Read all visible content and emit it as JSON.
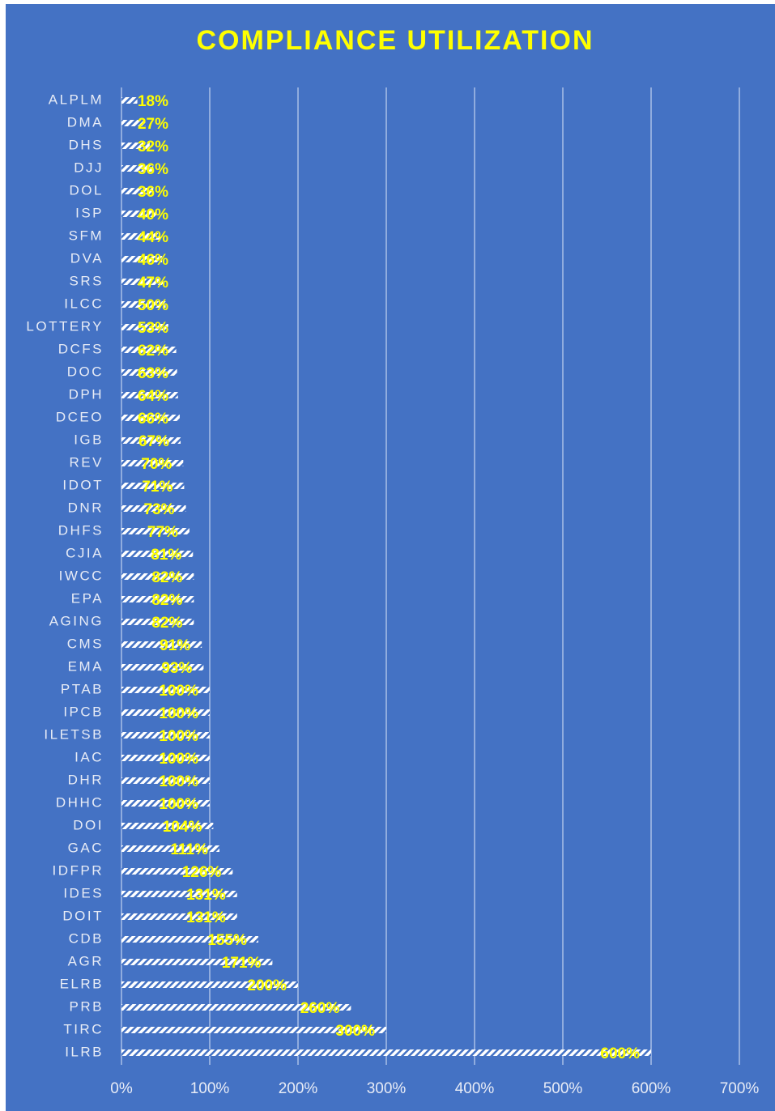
{
  "chart_data": {
    "type": "bar",
    "orientation": "horizontal",
    "title": "COMPLIANCE UTILIZATION",
    "categories": [
      "ALPLM",
      "DMA",
      "DHS",
      "DJJ",
      "DOL",
      "ISP",
      "SFM",
      "DVA",
      "SRS",
      "ILCC",
      "LOTTERY",
      "DCFS",
      "DOC",
      "DPH",
      "DCEO",
      "IGB",
      "REV",
      "IDOT",
      "DNR",
      "DHFS",
      "CJIA",
      "IWCC",
      "EPA",
      "AGING",
      "CMS",
      "EMA",
      "PTAB",
      "IPCB",
      "ILETSB",
      "IAC",
      "DHR",
      "DHHC",
      "DOI",
      "GAC",
      "IDFPR",
      "IDES",
      "DOIT",
      "CDB",
      "AGR",
      "ELRB",
      "PRB",
      "TIRC",
      "ILRB"
    ],
    "values": [
      18,
      27,
      32,
      36,
      36,
      40,
      44,
      46,
      47,
      50,
      53,
      62,
      63,
      64,
      66,
      67,
      70,
      71,
      73,
      77,
      81,
      82,
      82,
      82,
      91,
      93,
      100,
      100,
      100,
      100,
      100,
      100,
      104,
      111,
      126,
      131,
      131,
      155,
      171,
      200,
      260,
      300,
      600
    ],
    "value_labels": [
      "18%",
      "27%",
      "32%",
      "36%",
      "36%",
      "40%",
      "44%",
      "46%",
      "47%",
      "50%",
      "53%",
      "62%",
      "63%",
      "64%",
      "66%",
      "67%",
      "70%",
      "71%",
      "73%",
      "77%",
      "81%",
      "82%",
      "82%",
      "82%",
      "91%",
      "93%",
      "100%",
      "100%",
      "100%",
      "100%",
      "100%",
      "100%",
      "104%",
      "111%",
      "126%",
      "131%",
      "131%",
      "155%",
      "171%",
      "200%",
      "260%",
      "300%",
      "600%"
    ],
    "xlim": [
      0,
      700
    ],
    "xticks": [
      {
        "value": 0,
        "label": "0%"
      },
      {
        "value": 100,
        "label": "100%"
      },
      {
        "value": 200,
        "label": "200%"
      },
      {
        "value": 300,
        "label": "300%"
      },
      {
        "value": 400,
        "label": "400%"
      },
      {
        "value": 500,
        "label": "500%"
      },
      {
        "value": 600,
        "label": "600%"
      },
      {
        "value": 700,
        "label": "700%"
      }
    ],
    "grid": true
  }
}
